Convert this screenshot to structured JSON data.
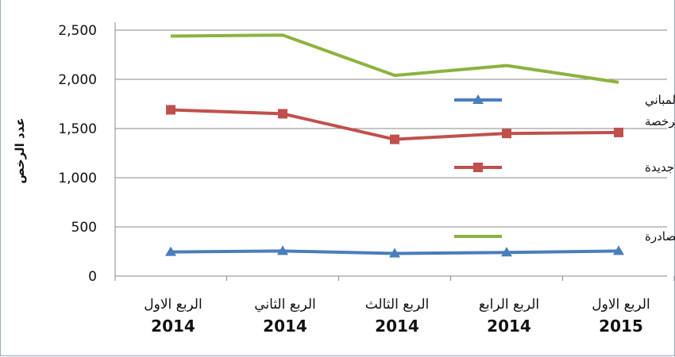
{
  "chart_data": {
    "type": "line",
    "ylabel": "عدد الرخص",
    "ylim": [
      0,
      2500
    ],
    "yticks": [
      "0",
      "500",
      "1,000",
      "1,500",
      "2,000",
      "2,500"
    ],
    "ytick_values": [
      0,
      500,
      1000,
      1500,
      2000,
      2500
    ],
    "categories": [
      {
        "quarter": "الربع الاول",
        "year": "2014"
      },
      {
        "quarter": "الربع الثاني",
        "year": "2014"
      },
      {
        "quarter": "الربع الثالث",
        "year": "2014"
      },
      {
        "quarter": "الربع الرابع",
        "year": "2014"
      },
      {
        "quarter": "الربع الاول",
        "year": "2015"
      }
    ],
    "series": [
      {
        "name": "الرخص الصادرة",
        "color": "#8db23f",
        "marker": "none",
        "values": [
          2440,
          2450,
          2040,
          2140,
          1970
        ]
      },
      {
        "name": "أبنية جديدة",
        "color": "#c0504d",
        "marker": "square",
        "values": [
          1690,
          1650,
          1390,
          1450,
          1460
        ]
      },
      {
        "name": "اضافات جديدة لمباني مرخصة",
        "color": "#4a7ebb",
        "marker": "triangle",
        "values": [
          245,
          255,
          230,
          240,
          255
        ]
      }
    ],
    "legend": {
      "position": "right",
      "order": [
        2,
        1,
        0
      ],
      "lines": [
        [
          "اضافات جديدة لمباني",
          "مرخصة"
        ],
        [
          "أبنية جديدة"
        ],
        [
          "الرخص الصادرة"
        ]
      ]
    },
    "grid": true
  }
}
